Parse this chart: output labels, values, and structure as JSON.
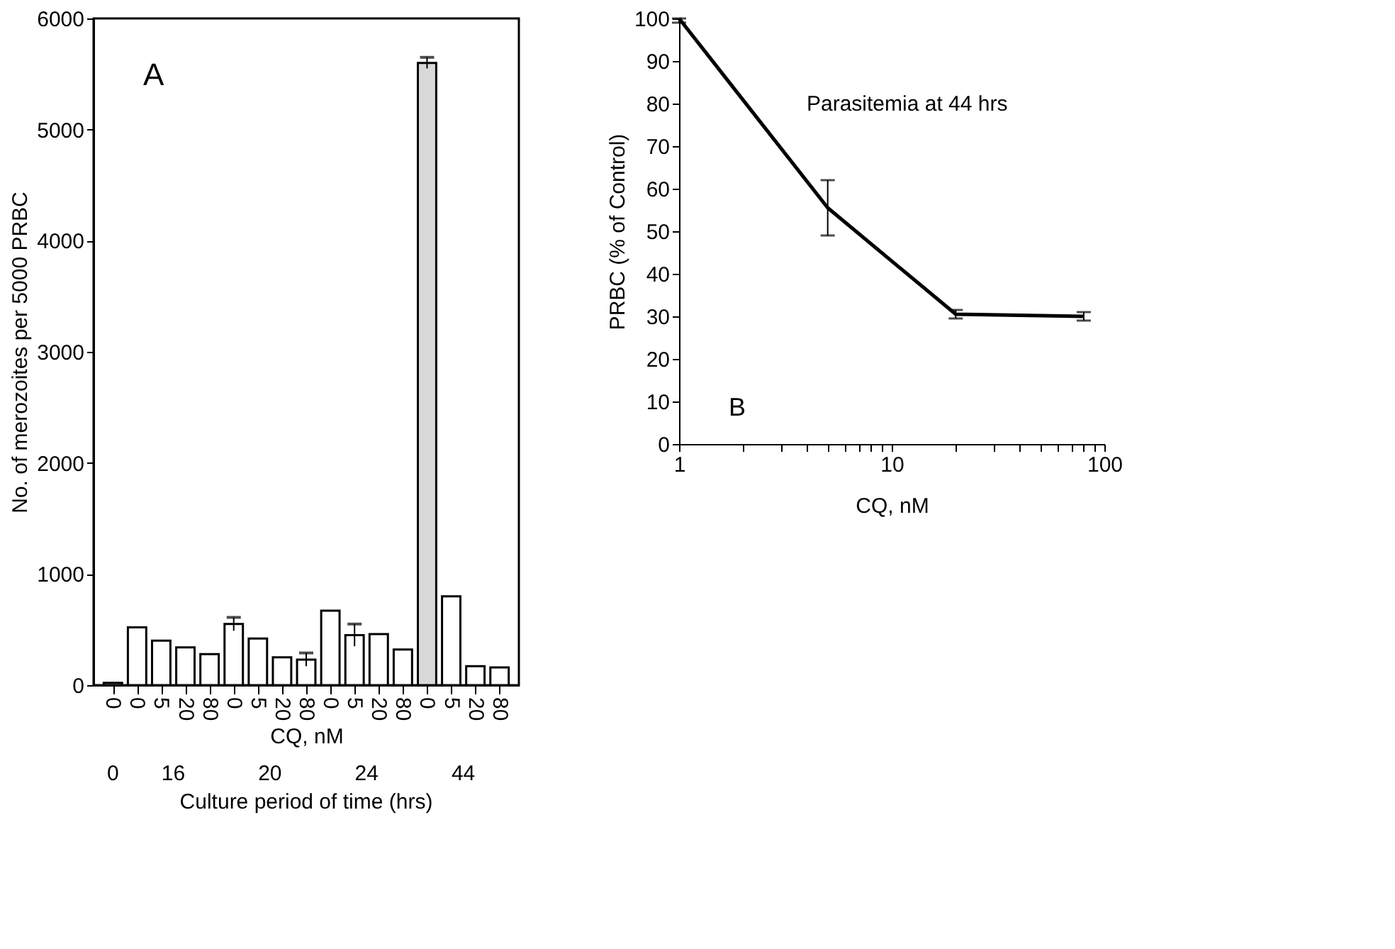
{
  "chart_data": [
    {
      "type": "bar",
      "ylabel": "No. of merozoites per 5000 PRBC",
      "xlabel": "CQ, nM",
      "categories": [
        "0",
        "0",
        "5",
        "20",
        "80",
        "0",
        "5",
        "20",
        "80",
        "0",
        "5",
        "20",
        "80",
        "0",
        "5",
        "20",
        "80"
      ],
      "values": [
        20,
        520,
        400,
        340,
        280,
        550,
        420,
        250,
        230,
        670,
        450,
        460,
        320,
        5600,
        800,
        170,
        160
      ],
      "errors": [
        null,
        null,
        null,
        null,
        null,
        60,
        null,
        null,
        60,
        null,
        100,
        null,
        null,
        50,
        null,
        null,
        null
      ],
      "colors": [
        "#ffffff",
        "#ffffff",
        "#ffffff",
        "#ffffff",
        "#ffffff",
        "#ffffff",
        "#ffffff",
        "#ffffff",
        "#ffffff",
        "#ffffff",
        "#ffffff",
        "#ffffff",
        "#ffffff",
        "#d9d9d9",
        "#ffffff",
        "#ffffff",
        "#ffffff"
      ],
      "ylim": [
        0,
        6000
      ],
      "yticks": [
        0,
        1000,
        2000,
        3000,
        4000,
        5000,
        6000
      ],
      "grid": false,
      "annotations": [
        "A",
        "0",
        "16",
        "20",
        "24",
        "44",
        "Culture period of time  (hrs)"
      ]
    },
    {
      "type": "line",
      "xlabel": "CQ, nM",
      "ylabel": "PRBC (% of Control)",
      "color": "#000000",
      "x": [
        1,
        5,
        20,
        80
      ],
      "values": [
        100,
        55.5,
        30.5,
        30
      ],
      "errors": [
        [
          99,
          100
        ],
        [
          49,
          62
        ],
        1,
        1
      ],
      "xlim": [
        1,
        100
      ],
      "xticks": [
        1,
        {
          "value": 2,
          "label": null
        },
        {
          "value": 3,
          "label": null
        },
        {
          "value": 4,
          "label": null
        },
        {
          "value": 5,
          "label": null
        },
        {
          "value": 6,
          "label": null
        },
        {
          "value": 7,
          "label": null
        },
        {
          "value": 8,
          "label": null
        },
        {
          "value": 9,
          "label": null
        },
        10,
        {
          "value": 20,
          "label": null
        },
        {
          "value": 30,
          "label": null
        },
        {
          "value": 40,
          "label": null
        },
        {
          "value": 50,
          "label": null
        },
        {
          "value": 60,
          "label": null
        },
        {
          "value": 70,
          "label": null
        },
        {
          "value": 80,
          "label": null
        },
        {
          "value": 90,
          "label": null
        },
        100
      ],
      "ylim": [
        0,
        100
      ],
      "yticks": [
        0,
        10,
        20,
        30,
        40,
        50,
        60,
        70,
        80,
        90,
        100
      ],
      "log": "x",
      "grid": false,
      "annotations": [
        "Parasitemia at 44 hrs",
        "B"
      ]
    }
  ]
}
